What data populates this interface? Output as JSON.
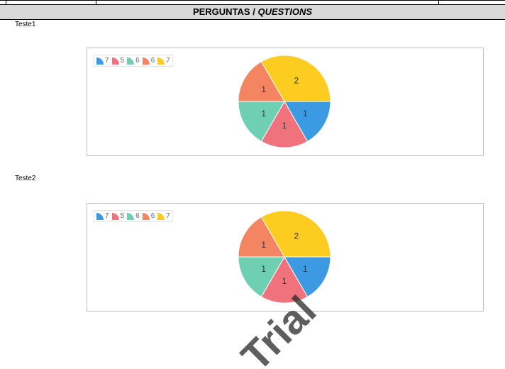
{
  "header": {
    "title_main": "PERGUNTAS / ",
    "title_em": "QUESTIONS"
  },
  "watermark_text": "Trial",
  "questions": [
    {
      "label": "Teste1"
    },
    {
      "label": "Teste2"
    }
  ],
  "chart_data": [
    {
      "type": "pie",
      "legend": [
        "7",
        "5",
        "6",
        "6",
        "7"
      ],
      "values": [
        1,
        1,
        1,
        1,
        2
      ],
      "colors": [
        "#3b9ae1",
        "#f0727c",
        "#6ecfb3",
        "#f38563",
        "#fdcc21"
      ]
    },
    {
      "type": "pie",
      "legend": [
        "7",
        "5",
        "6",
        "6",
        "7"
      ],
      "values": [
        1,
        1,
        1,
        1,
        2
      ],
      "colors": [
        "#3b9ae1",
        "#f0727c",
        "#6ecfb3",
        "#f38563",
        "#fdcc21"
      ]
    }
  ]
}
